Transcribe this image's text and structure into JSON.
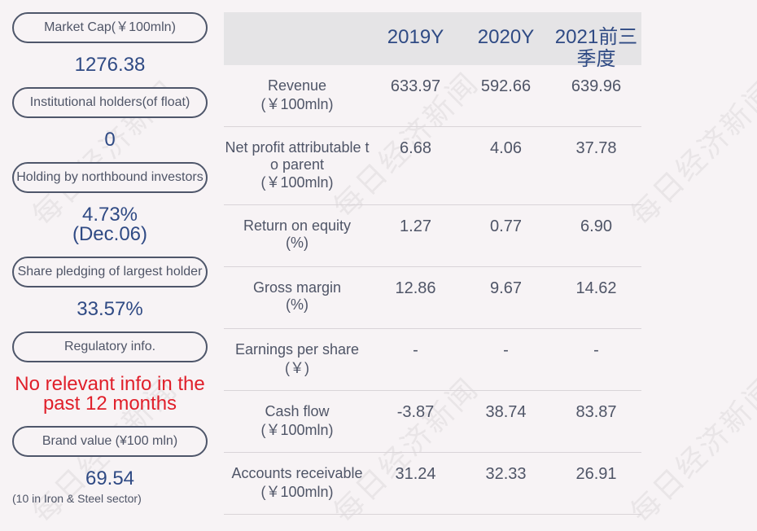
{
  "left_panel": {
    "market_cap": {
      "label": "Market Cap(￥100mln)",
      "value": "1276.38"
    },
    "institutional": {
      "label": "Institutional holders(of float)",
      "value": "0"
    },
    "northbound": {
      "label": "Holding by northbound investors",
      "value_line1": "4.73%",
      "value_line2": "(Dec.06)"
    },
    "pledging": {
      "label": "Share pledging of largest holder",
      "value": "33.57%"
    },
    "regulatory": {
      "label": "Regulatory info.",
      "value_line1": "No relevant info in the",
      "value_line2": "past 12 months"
    },
    "brand": {
      "label": "Brand value (¥100 mln)",
      "value": "69.54",
      "note": "(10 in Iron & Steel sector)"
    }
  },
  "table": {
    "headers": [
      "2019Y",
      "2020Y",
      "2021前三",
      "季度"
    ],
    "rows": [
      {
        "label_line1": "Revenue",
        "label_line2": "(￥100mln)",
        "label_line3": "",
        "values": [
          "633.97",
          "592.66",
          "639.96"
        ]
      },
      {
        "label_line1": "Net profit attributable t",
        "label_line2": "o parent",
        "label_line3": "(￥100mln)",
        "values": [
          "6.68",
          "4.06",
          "37.78"
        ]
      },
      {
        "label_line1": "Return on equity",
        "label_line2": "(%)",
        "label_line3": "",
        "values": [
          "1.27",
          "0.77",
          "6.90"
        ]
      },
      {
        "label_line1": "Gross margin",
        "label_line2": "(%)",
        "label_line3": "",
        "values": [
          "12.86",
          "9.67",
          "14.62"
        ]
      },
      {
        "label_line1": "Earnings per share",
        "label_line2": "(￥)",
        "label_line3": "",
        "values": [
          "-",
          "-",
          "-"
        ]
      },
      {
        "label_line1": "Cash flow",
        "label_line2": "(￥100mln)",
        "label_line3": "",
        "values": [
          "-3.87",
          "38.74",
          "83.87"
        ]
      },
      {
        "label_line1": "Accounts receivable",
        "label_line2": "(￥100mln)",
        "label_line3": "",
        "values": [
          "31.24",
          "32.33",
          "26.91"
        ]
      }
    ]
  },
  "watermark": "每日经济新闻"
}
